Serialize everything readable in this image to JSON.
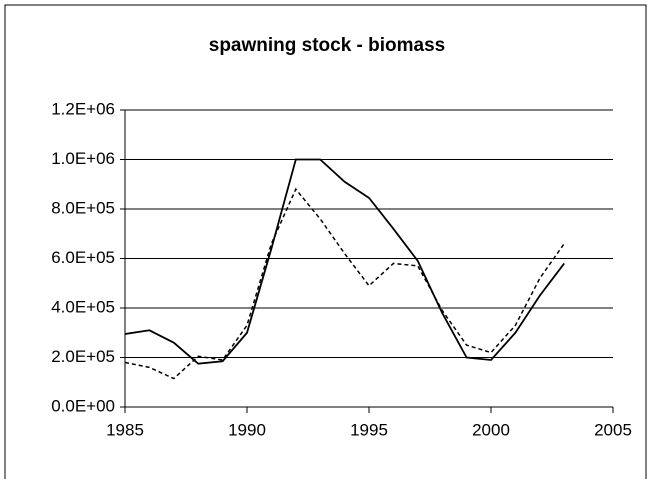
{
  "chart_data": {
    "type": "line",
    "title": "spawning stock - biomass",
    "x": [
      1985,
      1986,
      1987,
      1988,
      1989,
      1990,
      1991,
      1992,
      1993,
      1994,
      1995,
      1996,
      1997,
      1998,
      1999,
      2000,
      2001,
      2002,
      2003
    ],
    "series": [
      {
        "color": "#000000",
        "linestyle": "solid",
        "values": [
          295000,
          310000,
          260000,
          175000,
          185000,
          300000,
          640000,
          1000000,
          1000000,
          910000,
          845000,
          720000,
          590000,
          380000,
          200000,
          190000,
          300000,
          450000,
          580000
        ]
      },
      {
        "color": "#000000",
        "linestyle": "dashed",
        "values": [
          180000,
          160000,
          115000,
          205000,
          190000,
          330000,
          660000,
          880000,
          760000,
          620000,
          490000,
          580000,
          570000,
          390000,
          250000,
          220000,
          330000,
          520000,
          660000
        ]
      }
    ],
    "xlim": [
      1985,
      2005
    ],
    "xticks": [
      1985,
      1990,
      1995,
      2000,
      2005
    ],
    "ylim": [
      0,
      1200000
    ],
    "yticks": [
      {
        "value": 0,
        "label": "0.0E+00"
      },
      {
        "value": 200000,
        "label": "2.0E+05"
      },
      {
        "value": 400000,
        "label": "4.0E+05"
      },
      {
        "value": 600000,
        "label": "6.0E+05"
      },
      {
        "value": 800000,
        "label": "8.0E+05"
      },
      {
        "value": 1000000,
        "label": "1.0E+06"
      },
      {
        "value": 1200000,
        "label": "1.2E+06"
      }
    ],
    "grid": true
  }
}
